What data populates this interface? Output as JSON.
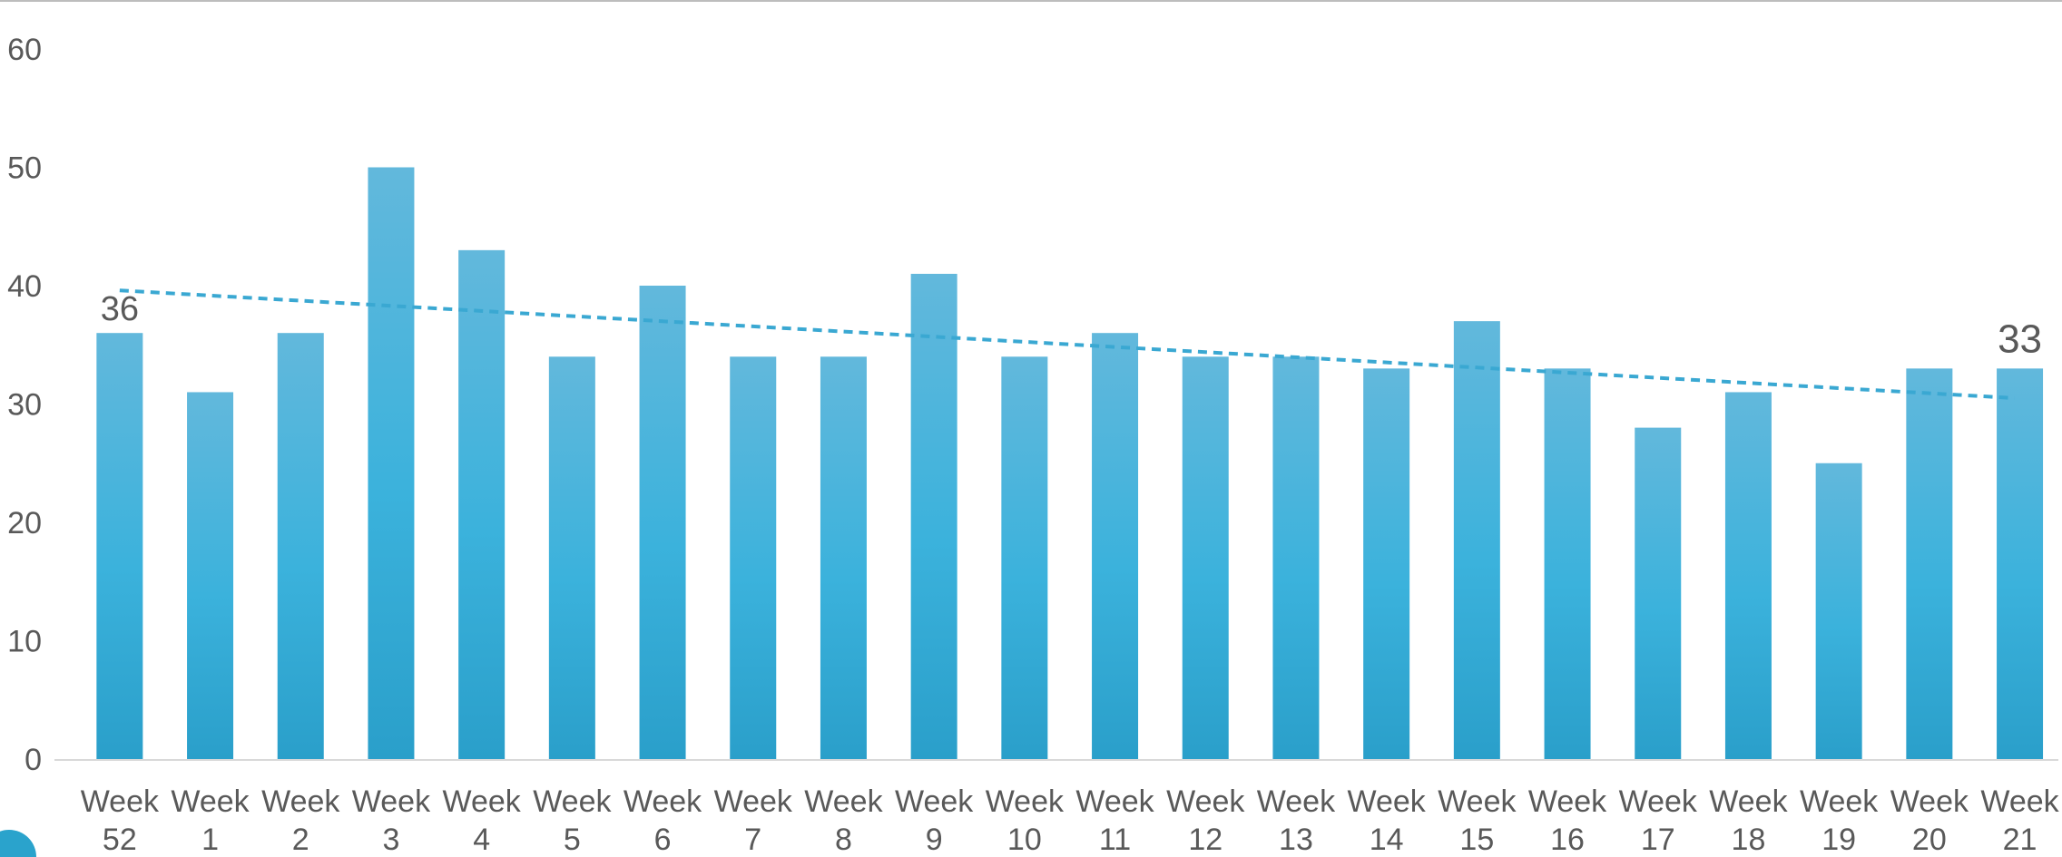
{
  "chart_data": {
    "type": "bar",
    "title": "",
    "xlabel": "",
    "ylabel": "",
    "categories": [
      [
        "Week",
        "52"
      ],
      [
        "Week",
        "1"
      ],
      [
        "Week",
        "2"
      ],
      [
        "Week",
        "3"
      ],
      [
        "Week",
        "4"
      ],
      [
        "Week",
        "5"
      ],
      [
        "Week",
        "6"
      ],
      [
        "Week",
        "7"
      ],
      [
        "Week",
        "8"
      ],
      [
        "Week",
        "9"
      ],
      [
        "Week",
        "10"
      ],
      [
        "Week",
        "11"
      ],
      [
        "Week",
        "12"
      ],
      [
        "Week",
        "13"
      ],
      [
        "Week",
        "14"
      ],
      [
        "Week",
        "15"
      ],
      [
        "Week",
        "16"
      ],
      [
        "Week",
        "17"
      ],
      [
        "Week",
        "18"
      ],
      [
        "Week",
        "19"
      ],
      [
        "Week",
        "20"
      ],
      [
        "Week",
        "21"
      ]
    ],
    "values": [
      36,
      31,
      36,
      50,
      43,
      34,
      40,
      34,
      34,
      41,
      34,
      36,
      34,
      34,
      33,
      37,
      33,
      28,
      31,
      25,
      33,
      33
    ],
    "ylim": [
      0,
      60
    ],
    "yticks": [
      "0",
      "10",
      "20",
      "30",
      "40",
      "50",
      "60"
    ],
    "grid": false,
    "legend": "none",
    "data_labels": [
      {
        "index": 0,
        "text": "36"
      },
      {
        "index": 21,
        "text": "33"
      }
    ],
    "trendline": {
      "type": "linear",
      "style": "dashed",
      "start_value": 39.6,
      "end_value": 30.5
    },
    "colors": {
      "bar_top": "#62b8dc",
      "bar_mid": "#3bb2dc",
      "bar_bottom": "#2a9fca",
      "trendline": "#3aa8d2",
      "axis_text": "#595959",
      "axis_line": "#d9d9d9"
    }
  }
}
